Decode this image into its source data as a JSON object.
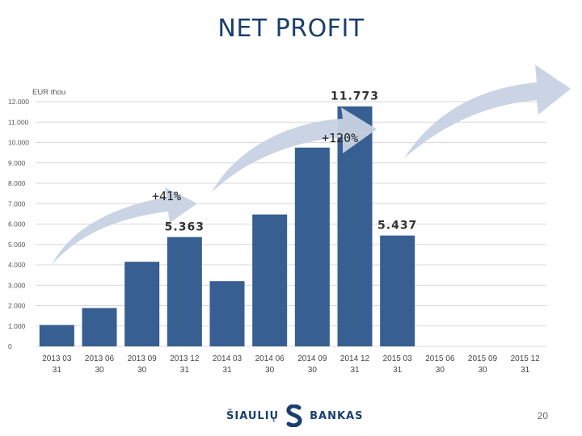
{
  "page": {
    "title": "NET PROFIT",
    "page_number": "20"
  },
  "logo": {
    "left_text": "ŠIAULIŲ",
    "right_text": "BANKAS",
    "color": "#1a3f6e"
  },
  "colors": {
    "bar": "#375f91",
    "grid": "#d9d9d9",
    "arrow": "#c7d2e3",
    "title": "#1a3f6e"
  },
  "chart_data": {
    "type": "bar",
    "title": "NET PROFIT",
    "ylabel": "EUR thou",
    "xlabel": "",
    "ylim": [
      0,
      12000
    ],
    "yticks": [
      0,
      1000,
      2000,
      3000,
      4000,
      5000,
      6000,
      7000,
      8000,
      9000,
      10000,
      11000,
      12000
    ],
    "ytick_labels": [
      "0",
      "1.000",
      "2.000",
      "3.000",
      "4.000",
      "5.000",
      "6.000",
      "7.000",
      "8.000",
      "9.000",
      "10.000",
      "11.000",
      "12.000"
    ],
    "categories": [
      [
        "2013 03",
        "31"
      ],
      [
        "2013 06",
        "30"
      ],
      [
        "2013 09",
        "30"
      ],
      [
        "2013 12",
        "31"
      ],
      [
        "2014 03",
        "31"
      ],
      [
        "2014 06",
        "30"
      ],
      [
        "2014 09",
        "30"
      ],
      [
        "2014 12",
        "31"
      ],
      [
        "2015 03",
        "31"
      ],
      [
        "2015 06",
        "30"
      ],
      [
        "2015 09",
        "30"
      ],
      [
        "2015 12",
        "31"
      ]
    ],
    "values": [
      1050,
      1880,
      4150,
      5363,
      3200,
      6470,
      9750,
      11773,
      5437,
      null,
      null,
      null
    ],
    "data_labels": [
      {
        "index": 3,
        "text": "5.363"
      },
      {
        "index": 7,
        "text": "11.773"
      },
      {
        "index": 8,
        "text": "5.437"
      }
    ],
    "annotations": [
      {
        "text": "+41%"
      },
      {
        "text": "+120%"
      }
    ],
    "grid": true
  }
}
